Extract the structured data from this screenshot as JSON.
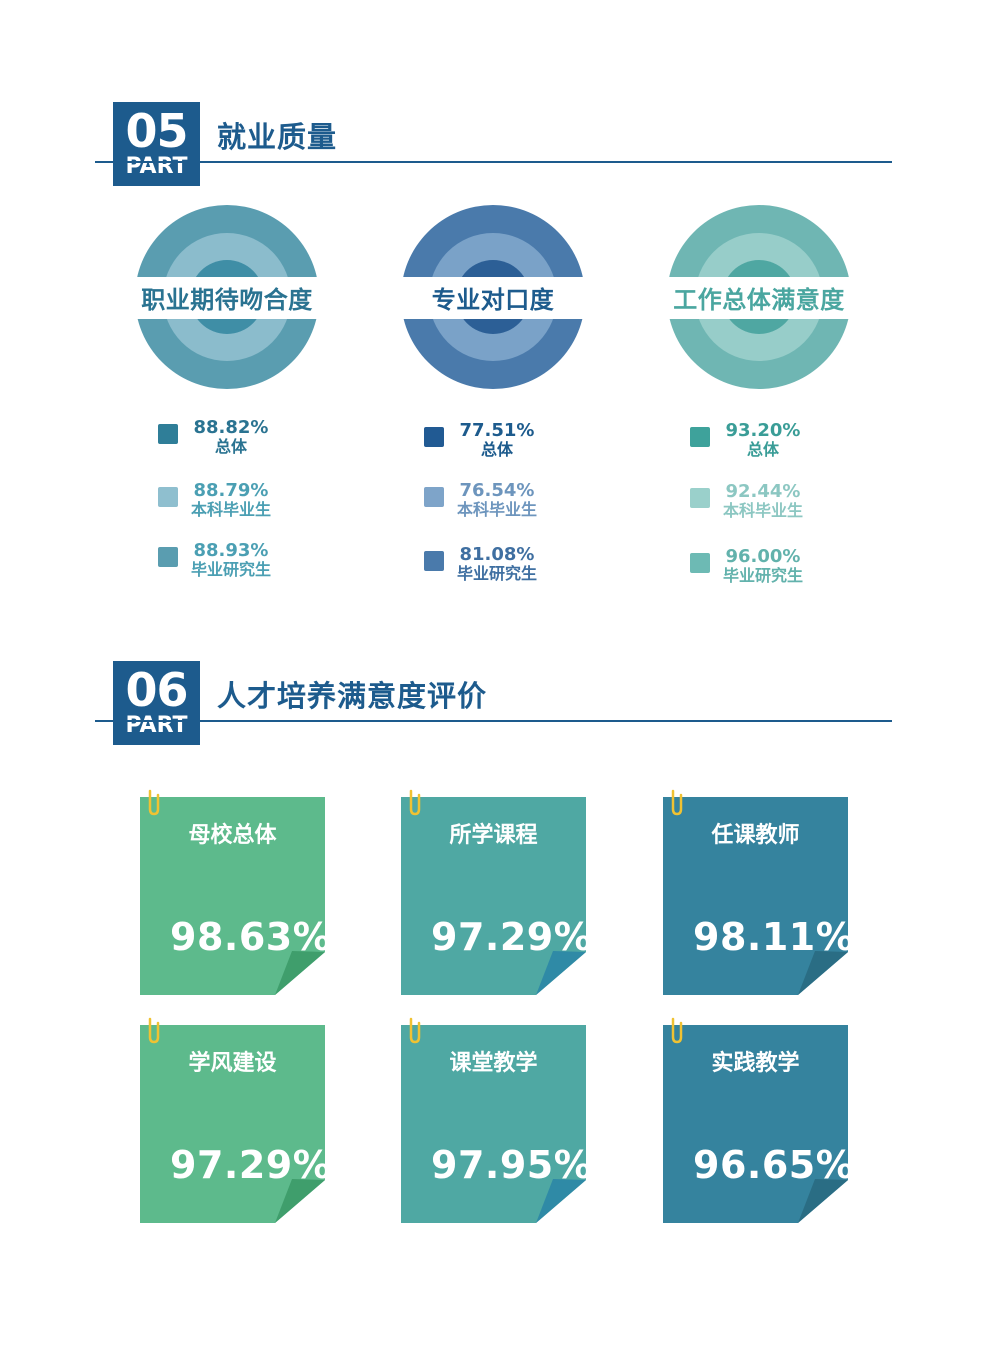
{
  "section5": {
    "num": "05",
    "part": "PART",
    "title": "就业质量",
    "circles": [
      {
        "title": "职业期待吻合度",
        "colors": {
          "outer": "#5a9db0",
          "middle": "#8bbccc",
          "inner": "#3f8ea6",
          "band": "#ffffff",
          "text": "#2a7391"
        },
        "legend": [
          {
            "value": "88.82%",
            "label": "总体",
            "swatch": "#2f7e98",
            "text_color": "#2a7391"
          },
          {
            "value": "88.79%",
            "label": "本科毕业生",
            "swatch": "#8fbfcf",
            "text_color": "#4b9fb3"
          },
          {
            "value": "88.93%",
            "label": "毕业研究生",
            "swatch": "#5a9db0",
            "text_color": "#4b9fb3"
          }
        ]
      },
      {
        "title": "专业对口度",
        "colors": {
          "outer": "#4a7aab",
          "middle": "#7aa2c8",
          "inner": "#2c5f96",
          "band": "#ffffff",
          "text": "#1d5b8d"
        },
        "legend": [
          {
            "value": "77.51%",
            "label": "总体",
            "swatch": "#215a93",
            "text_color": "#1d5b8d"
          },
          {
            "value": "76.54%",
            "label": "本科毕业生",
            "swatch": "#7ea4c9",
            "text_color": "#6d95bd"
          },
          {
            "value": "81.08%",
            "label": "毕业研究生",
            "swatch": "#4a7aab",
            "text_color": "#3f6fa1"
          }
        ]
      },
      {
        "title": "工作总体满意度",
        "colors": {
          "outer": "#6fb6b3",
          "middle": "#97cdc9",
          "inner": "#4fa7a2",
          "band": "#ffffff",
          "text": "#4aa6a0"
        },
        "legend": [
          {
            "value": "93.20%",
            "label": "总体",
            "swatch": "#3ea29b",
            "text_color": "#3a9d97"
          },
          {
            "value": "92.44%",
            "label": "本科毕业生",
            "swatch": "#9ad0cb",
            "text_color": "#8cc7c2"
          },
          {
            "value": "96.00%",
            "label": "毕业研究生",
            "swatch": "#6dbab4",
            "text_color": "#62b2ac"
          }
        ]
      }
    ]
  },
  "section6": {
    "num": "06",
    "part": "PART",
    "title": "人才培养满意度评价",
    "notes": [
      {
        "label": "母校总体",
        "value": "98.63%",
        "color": "#5dba8c",
        "fold": "#3f9e6c"
      },
      {
        "label": "所学课程",
        "value": "97.29%",
        "color": "#4fa8a3",
        "fold": "#2f8aa6"
      },
      {
        "label": "任课教师",
        "value": "98.11%",
        "color": "#35839e",
        "fold": "#2a6d84"
      },
      {
        "label": "学风建设",
        "value": "97.29%",
        "color": "#5dba8c",
        "fold": "#3f9e6c"
      },
      {
        "label": "课堂教学",
        "value": "97.95%",
        "color": "#4fa8a3",
        "fold": "#2f8aa6"
      },
      {
        "label": "实践教学",
        "value": "96.65%",
        "color": "#35839e",
        "fold": "#2a6d84"
      }
    ],
    "clip_color": "#f0c232"
  }
}
